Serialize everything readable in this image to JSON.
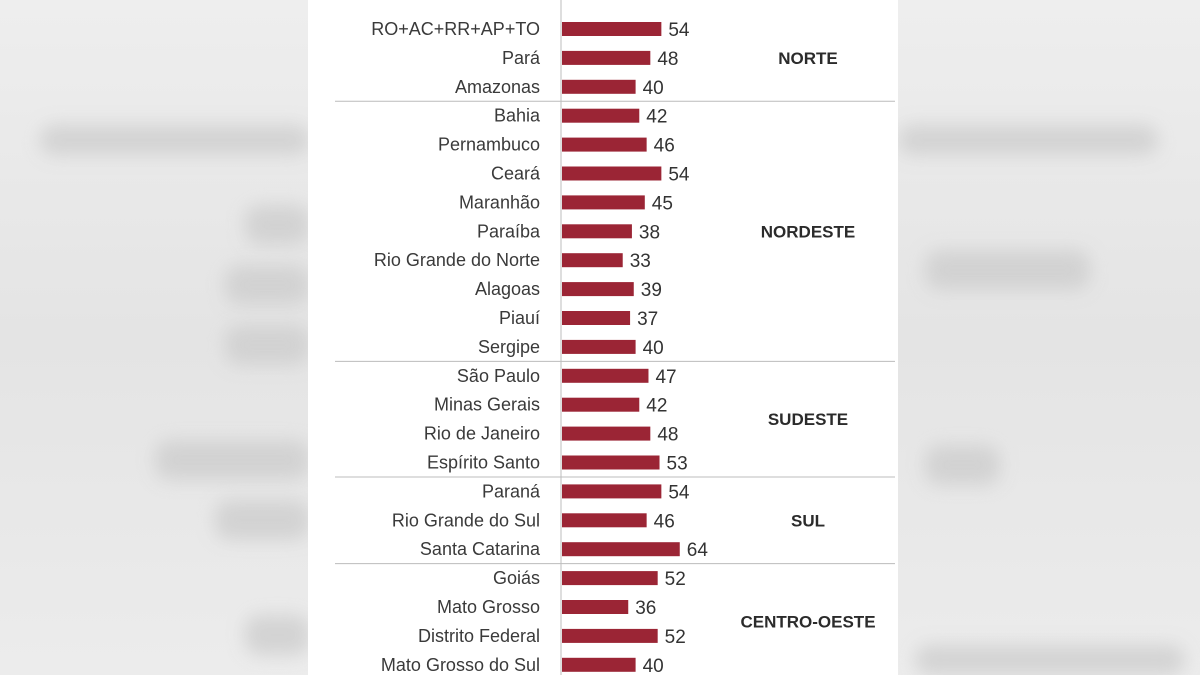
{
  "chart_data": {
    "type": "bar",
    "orientation": "horizontal",
    "title": "",
    "xlabel": "",
    "ylabel": "",
    "xlim": [
      0,
      70
    ],
    "grid": false,
    "bar_color": "#9b2535",
    "categories": [
      "RO+AC+RR+AP+TO",
      "Pará",
      "Amazonas",
      "Bahia",
      "Pernambuco",
      "Ceará",
      "Maranhão",
      "Paraíba",
      "Rio Grande do Norte",
      "Alagoas",
      "Piauí",
      "Sergipe",
      "São Paulo",
      "Minas Gerais",
      "Rio de Janeiro",
      "Espírito Santo",
      "Paraná",
      "Rio Grande do Sul",
      "Santa Catarina",
      "Goiás",
      "Mato Grosso",
      "Distrito Federal",
      "Mato Grosso do Sul"
    ],
    "values": [
      54,
      48,
      40,
      42,
      46,
      54,
      45,
      38,
      33,
      39,
      37,
      40,
      47,
      42,
      48,
      53,
      54,
      46,
      64,
      52,
      36,
      52,
      40
    ],
    "groups": [
      {
        "name": "NORTE",
        "count": 3
      },
      {
        "name": "NORDESTE",
        "count": 9
      },
      {
        "name": "SUDESTE",
        "count": 4
      },
      {
        "name": "SUL",
        "count": 3
      },
      {
        "name": "CENTRO-OESTE",
        "count": 4
      }
    ]
  }
}
